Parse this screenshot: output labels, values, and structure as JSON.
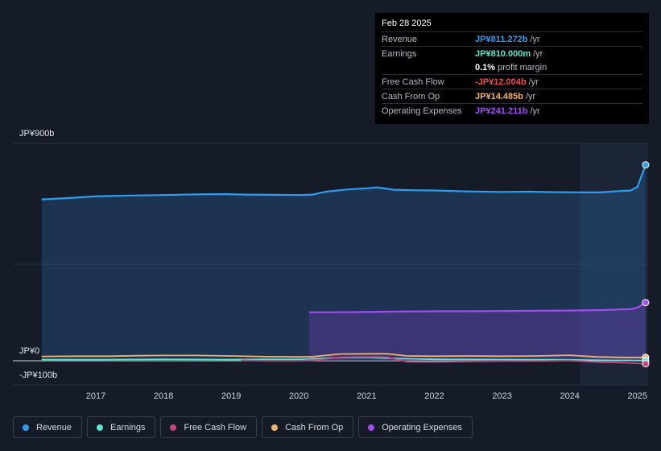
{
  "tooltip": {
    "date": "Feb 28 2025",
    "rows": [
      {
        "label": "Revenue",
        "value": "JP¥811.272b",
        "unit": "/yr",
        "color": "#2e9cf0"
      },
      {
        "label": "Earnings",
        "value": "JP¥810.000m",
        "unit": "/yr",
        "color": "#5ee8d0"
      },
      {
        "label": "",
        "value": "0.1%",
        "unit": "profit margin",
        "color": "#ffffff"
      },
      {
        "label": "Free Cash Flow",
        "value": "-JP¥12.004b",
        "unit": "/yr",
        "color": "#ef4a55"
      },
      {
        "label": "Cash From Op",
        "value": "JP¥14.485b",
        "unit": "/yr",
        "color": "#f2b36b"
      },
      {
        "label": "Operating Expenses",
        "value": "JP¥241.211b",
        "unit": "/yr",
        "color": "#a24df2"
      }
    ]
  },
  "y_labels": {
    "top": "JP¥900b",
    "zero": "JP¥0",
    "bottom": "-JP¥100b"
  },
  "legend": [
    {
      "label": "Revenue",
      "color": "#2e9cf0"
    },
    {
      "label": "Earnings",
      "color": "#5ee8d0"
    },
    {
      "label": "Free Cash Flow",
      "color": "#c8457e"
    },
    {
      "label": "Cash From Op",
      "color": "#f2b36b"
    },
    {
      "label": "Operating Expenses",
      "color": "#a24df2"
    }
  ],
  "chart_data": {
    "type": "area",
    "ylim": [
      -100,
      900
    ],
    "ylabel_unit": "JP¥ b",
    "x_ticks": [
      2017,
      2018,
      2019,
      2020,
      2021,
      2022,
      2023,
      2024,
      2025
    ],
    "highlight_from": 2024.15,
    "series": [
      {
        "name": "Revenue",
        "color": "#2e9cf0",
        "fill": true,
        "points": [
          [
            2016.2,
            668
          ],
          [
            2016.5,
            672
          ],
          [
            2016.8,
            677
          ],
          [
            2017.0,
            681
          ],
          [
            2017.5,
            684
          ],
          [
            2018.0,
            686
          ],
          [
            2018.5,
            689
          ],
          [
            2018.9,
            690
          ],
          [
            2019.2,
            688
          ],
          [
            2019.6,
            687
          ],
          [
            2020.0,
            686
          ],
          [
            2020.2,
            688
          ],
          [
            2020.4,
            700
          ],
          [
            2020.7,
            709
          ],
          [
            2021.0,
            714
          ],
          [
            2021.15,
            718
          ],
          [
            2021.4,
            708
          ],
          [
            2021.7,
            706
          ],
          [
            2022.0,
            705
          ],
          [
            2022.5,
            701
          ],
          [
            2023.0,
            699
          ],
          [
            2023.4,
            700
          ],
          [
            2023.8,
            698
          ],
          [
            2024.2,
            697
          ],
          [
            2024.45,
            697
          ],
          [
            2024.65,
            701
          ],
          [
            2024.9,
            705
          ],
          [
            2025.0,
            720
          ],
          [
            2025.12,
            811
          ]
        ]
      },
      {
        "name": "Operating Expenses",
        "color": "#a24df2",
        "fill": true,
        "points": [
          [
            2020.15,
            201
          ],
          [
            2020.5,
            201
          ],
          [
            2021.0,
            202
          ],
          [
            2021.5,
            204
          ],
          [
            2022.0,
            205
          ],
          [
            2022.5,
            205
          ],
          [
            2023.0,
            206
          ],
          [
            2023.5,
            207
          ],
          [
            2024.0,
            208
          ],
          [
            2024.5,
            210
          ],
          [
            2024.9,
            214
          ],
          [
            2025.0,
            220
          ],
          [
            2025.12,
            241
          ]
        ]
      },
      {
        "name": "Cash From Op",
        "color": "#f2b36b",
        "fill": false,
        "points": [
          [
            2016.2,
            18
          ],
          [
            2016.7,
            19
          ],
          [
            2017.2,
            19
          ],
          [
            2017.6,
            21
          ],
          [
            2018.0,
            22
          ],
          [
            2018.5,
            22
          ],
          [
            2019.0,
            20
          ],
          [
            2019.5,
            17
          ],
          [
            2020.0,
            16
          ],
          [
            2020.2,
            17
          ],
          [
            2020.6,
            28
          ],
          [
            2021.0,
            29
          ],
          [
            2021.3,
            29
          ],
          [
            2021.6,
            20
          ],
          [
            2022.0,
            19
          ],
          [
            2022.5,
            20
          ],
          [
            2023.0,
            19
          ],
          [
            2023.5,
            20
          ],
          [
            2024.0,
            23
          ],
          [
            2024.4,
            16
          ],
          [
            2024.8,
            14
          ],
          [
            2025.12,
            14
          ]
        ]
      },
      {
        "name": "Earnings",
        "color": "#5ee8d0",
        "fill": false,
        "points": [
          [
            2016.2,
            5
          ],
          [
            2017.0,
            5
          ],
          [
            2018.0,
            6
          ],
          [
            2019.0,
            5
          ],
          [
            2019.5,
            6
          ],
          [
            2020.0,
            6
          ],
          [
            2020.5,
            12
          ],
          [
            2021.0,
            14
          ],
          [
            2021.5,
            9
          ],
          [
            2022.0,
            6
          ],
          [
            2023.0,
            5
          ],
          [
            2024.0,
            4
          ],
          [
            2024.5,
            2
          ],
          [
            2025.12,
            1
          ]
        ]
      },
      {
        "name": "Free Cash Flow",
        "color": "#c8457e",
        "fill": false,
        "points": [
          [
            2019.15,
            2
          ],
          [
            2019.5,
            0
          ],
          [
            2020.0,
            0
          ],
          [
            2020.2,
            2
          ],
          [
            2020.6,
            14
          ],
          [
            2021.0,
            16
          ],
          [
            2021.3,
            15
          ],
          [
            2021.6,
            -4
          ],
          [
            2022.0,
            -5
          ],
          [
            2022.5,
            -3
          ],
          [
            2023.0,
            -1
          ],
          [
            2023.5,
            -1
          ],
          [
            2024.0,
            1
          ],
          [
            2024.4,
            -5
          ],
          [
            2024.8,
            -8
          ],
          [
            2025.12,
            -12
          ]
        ]
      }
    ]
  }
}
